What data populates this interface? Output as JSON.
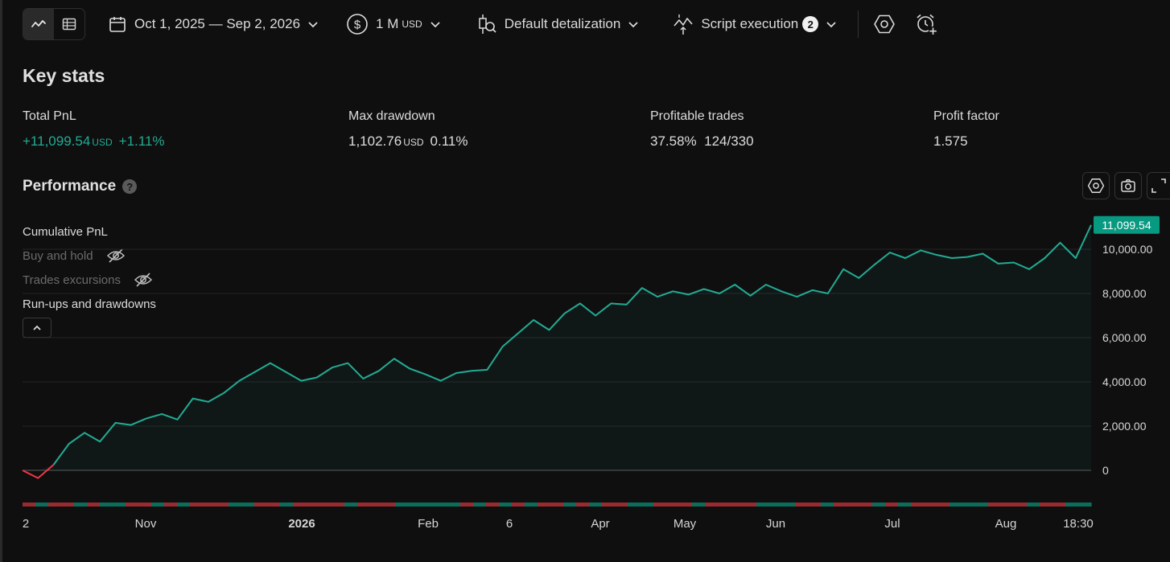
{
  "toolbar": {
    "date_range": "Oct 1, 2025 — Sep 2, 2026",
    "capital_value": "1 M",
    "capital_unit": "USD",
    "detalization": "Default detalization",
    "script_execution": "Script execution",
    "script_badge": "2"
  },
  "key_stats": {
    "title": "Key stats",
    "total_pnl": {
      "label": "Total PnL",
      "value": "+11,099.54",
      "unit": "USD",
      "percent": "+1.11%"
    },
    "max_drawdown": {
      "label": "Max drawdown",
      "value": "1,102.76",
      "unit": "USD",
      "percent": "0.11%"
    },
    "profitable_trades": {
      "label": "Profitable trades",
      "percent": "37.58%",
      "ratio": "124/330"
    },
    "profit_factor": {
      "label": "Profit factor",
      "value": "1.575"
    }
  },
  "performance": {
    "title": "Performance",
    "help": "?",
    "legend": {
      "cumulative": "Cumulative PnL",
      "buy_hold": "Buy and hold",
      "excursions": "Trades excursions",
      "runups": "Run-ups and drawdowns"
    }
  },
  "colors": {
    "accent": "#22ab94",
    "negative": "#f23645",
    "label_bg": "#089981"
  },
  "chart_data": {
    "type": "area",
    "y_ticks": [
      "10,000.00",
      "8,000.00",
      "6,000.00",
      "4,000.00",
      "2,000.00",
      "0"
    ],
    "ylim": [
      -1000,
      11500
    ],
    "last_value_label": "11,099.54",
    "x_tick_labels": [
      "2",
      "Nov",
      "2026",
      "Feb",
      "6",
      "Apr",
      "May",
      "Jun",
      "Jul",
      "Aug",
      "18:30"
    ],
    "grid": true,
    "series": [
      {
        "values": [
          0,
          -350,
          250,
          1200,
          1700,
          1300,
          2150,
          2050,
          2350,
          2550,
          2300,
          3250,
          3100,
          3500,
          4050,
          4450,
          4850,
          4450,
          4050,
          4200,
          4650,
          4850,
          4150,
          4500,
          5050,
          4600,
          4350,
          4050,
          4400,
          4500,
          4550,
          5600,
          6200,
          6800,
          6350,
          7100,
          7550,
          7000,
          7550,
          7500,
          8250,
          7850,
          8100,
          7950,
          8200,
          8000,
          8400,
          7900,
          8400,
          8100,
          7850,
          8150,
          8000,
          9100,
          8700,
          9300,
          9850,
          9600,
          9950,
          9750,
          9600,
          9650,
          9800,
          9350,
          9400,
          9100,
          9600,
          10300,
          9600,
          11099.54
        ]
      }
    ],
    "trade_outcome_bar": [
      0,
      1,
      0,
      0,
      1,
      0,
      1,
      1,
      0,
      0,
      1,
      0,
      1,
      0,
      0,
      0,
      1,
      1,
      0,
      0,
      1,
      0,
      0,
      0,
      0,
      1,
      0,
      0,
      0,
      1,
      1,
      1,
      1,
      1,
      0,
      1,
      0,
      1,
      0,
      1,
      0,
      0,
      1,
      0,
      1,
      0,
      0,
      1,
      1,
      0,
      0,
      0,
      1,
      0,
      0,
      0,
      0,
      1,
      1,
      1,
      0,
      0,
      1,
      0,
      0,
      0,
      1,
      0,
      1,
      0,
      0,
      0,
      1,
      1,
      1,
      0,
      0,
      0,
      1,
      0,
      0,
      1,
      1
    ]
  }
}
